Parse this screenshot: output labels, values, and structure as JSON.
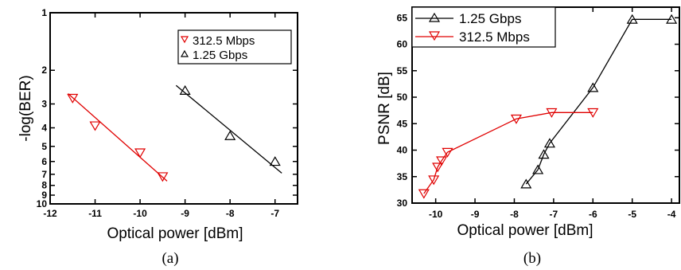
{
  "chart_data": [
    {
      "type": "line",
      "panel_label": "(a)",
      "xlabel": "Optical power [dBm]",
      "ylabel": "-log(BER)",
      "xlim": [
        -12,
        -6.5
      ],
      "ylim": [
        1,
        10
      ],
      "y_scale": "log",
      "y_reversed": true,
      "x_ticks": [
        -12,
        -11,
        -10,
        -9,
        -8,
        -7
      ],
      "y_ticks": [
        1,
        2,
        3,
        4,
        5,
        6,
        7,
        8,
        9,
        10
      ],
      "legend_position": "top-right",
      "series": [
        {
          "name": "312.5 Mbps",
          "marker": "triangle-down",
          "color": "#e00000",
          "x": [
            -11.5,
            -11.0,
            -10.0,
            -9.5
          ],
          "y": [
            2.8,
            3.9,
            5.4,
            7.2
          ],
          "fit_x": [
            -11.6,
            -9.4
          ],
          "fit_y": [
            2.65,
            7.6
          ]
        },
        {
          "name": "1.25 Gbps",
          "marker": "triangle-up",
          "color": "#000000",
          "x": [
            -9.0,
            -8.0,
            -7.0
          ],
          "y": [
            2.55,
            4.4,
            6.0
          ],
          "fit_x": [
            -9.2,
            -6.85
          ],
          "fit_y": [
            2.4,
            6.9
          ]
        }
      ]
    },
    {
      "type": "line",
      "panel_label": "(b)",
      "xlabel": "Optical power [dBm]",
      "ylabel": "PSNR [dB]",
      "xlim": [
        -10.6,
        -3.8
      ],
      "ylim": [
        30,
        67
      ],
      "x_ticks": [
        -10,
        -9,
        -8,
        -7,
        -6,
        -5,
        -4
      ],
      "y_ticks": [
        30,
        35,
        40,
        45,
        50,
        55,
        60,
        65
      ],
      "legend_position": "top-left",
      "series": [
        {
          "name": "1.25 Gbps",
          "marker": "triangle-up",
          "color": "#000000",
          "x": [
            -7.7,
            -7.4,
            -7.25,
            -7.1,
            -6.0,
            -5.0,
            -4.0
          ],
          "y": [
            33.6,
            36.3,
            39.2,
            41.3,
            51.8,
            64.7,
            64.7
          ]
        },
        {
          "name": "312.5 Mbps",
          "marker": "triangle-down",
          "color": "#e00000",
          "x": [
            -10.3,
            -10.05,
            -9.95,
            -9.85,
            -9.7,
            -7.95,
            -7.05,
            -6.0
          ],
          "y": [
            31.8,
            34.4,
            36.8,
            38.0,
            39.6,
            45.9,
            47.1,
            47.1
          ]
        }
      ]
    }
  ]
}
